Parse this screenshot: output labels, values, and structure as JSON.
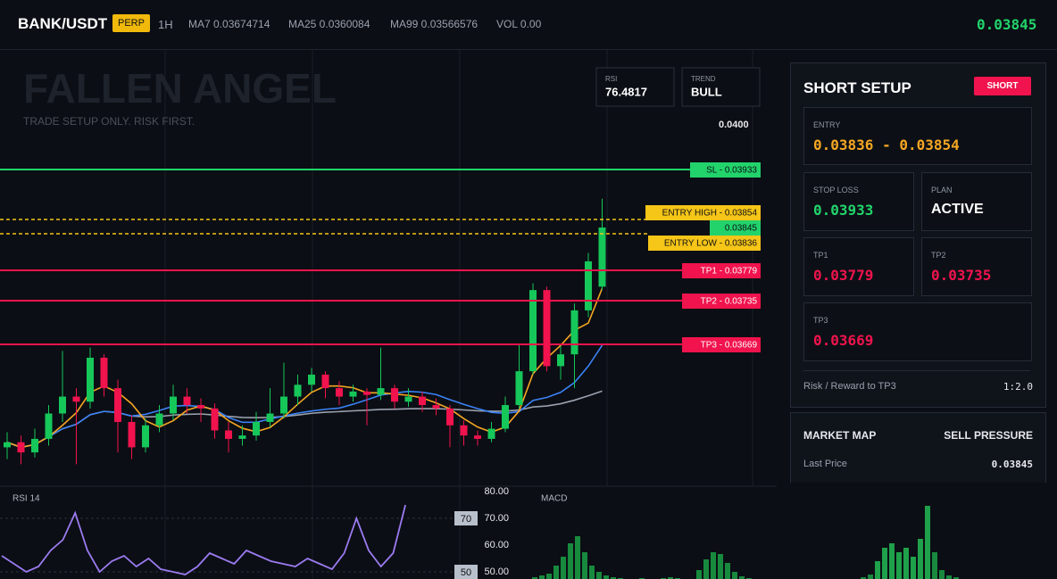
{
  "header": {
    "symbol": "BANK/USDT",
    "badge": "PERP",
    "interval": "1H",
    "ma7": "MA7 0.03674714",
    "ma25": "MA25 0.0360084",
    "ma99": "MA99 0.03566576",
    "vol": "VOL 0.00",
    "last": "0.03845"
  },
  "chart": {
    "title": "FALLEN ANGEL",
    "tagline": "TRADE SETUP ONLY. RISK FIRST.",
    "rsi_box": {
      "label": "RSI",
      "value": "76.4817"
    },
    "trend_box": {
      "label": "TREND",
      "value": "BULL"
    },
    "price_tick": "0.0400",
    "levels": [
      {
        "label": "SL - 0.03933"
      },
      {
        "label": "ENTRY HIGH - 0.03854"
      },
      {
        "label": "0.03845"
      },
      {
        "label": "ENTRY LOW - 0.03836"
      },
      {
        "label": "TP1 - 0.03779"
      },
      {
        "label": "TP2 - 0.03735"
      },
      {
        "label": "TP3 - 0.03669"
      }
    ],
    "ylim": [
      0.03692,
      0.0395
    ],
    "candles": [
      [
        0.03715,
        0.03724,
        0.03708,
        0.03718
      ],
      [
        0.03718,
        0.03722,
        0.03705,
        0.03712
      ],
      [
        0.03712,
        0.03726,
        0.03709,
        0.0372
      ],
      [
        0.0372,
        0.0374,
        0.03716,
        0.03735
      ],
      [
        0.03735,
        0.03772,
        0.0373,
        0.03745
      ],
      [
        0.03745,
        0.0375,
        0.03705,
        0.03742
      ],
      [
        0.03742,
        0.03774,
        0.03738,
        0.03768
      ],
      [
        0.03768,
        0.0377,
        0.03745,
        0.0375
      ],
      [
        0.0375,
        0.03755,
        0.03712,
        0.0373
      ],
      [
        0.0373,
        0.03734,
        0.03708,
        0.03715
      ],
      [
        0.03715,
        0.03732,
        0.03712,
        0.03728
      ],
      [
        0.03728,
        0.0374,
        0.03724,
        0.03735
      ],
      [
        0.03735,
        0.03752,
        0.03731,
        0.03745
      ],
      [
        0.03745,
        0.0375,
        0.03735,
        0.0374
      ],
      [
        0.0374,
        0.03744,
        0.0373,
        0.03738
      ],
      [
        0.03738,
        0.03741,
        0.0372,
        0.03725
      ],
      [
        0.03725,
        0.0373,
        0.03712,
        0.0372
      ],
      [
        0.0372,
        0.03728,
        0.03716,
        0.03722
      ],
      [
        0.03722,
        0.03736,
        0.03719,
        0.0373
      ],
      [
        0.0373,
        0.0375,
        0.03727,
        0.03735
      ],
      [
        0.03735,
        0.03765,
        0.03732,
        0.03745
      ],
      [
        0.03745,
        0.03758,
        0.0374,
        0.03752
      ],
      [
        0.03752,
        0.03762,
        0.03748,
        0.03758
      ],
      [
        0.03758,
        0.0376,
        0.03744,
        0.0375
      ],
      [
        0.0375,
        0.03754,
        0.0374,
        0.03745
      ],
      [
        0.03745,
        0.03752,
        0.03742,
        0.03748
      ],
      [
        0.03748,
        0.0375,
        0.03728,
        0.03746
      ],
      [
        0.03746,
        0.03774,
        0.03743,
        0.0375
      ],
      [
        0.0375,
        0.03752,
        0.03738,
        0.03742
      ],
      [
        0.03742,
        0.0375,
        0.03739,
        0.03745
      ],
      [
        0.03745,
        0.03748,
        0.03736,
        0.0374
      ],
      [
        0.0374,
        0.03744,
        0.03734,
        0.03738
      ],
      [
        0.03738,
        0.0374,
        0.03715,
        0.03728
      ],
      [
        0.03728,
        0.03731,
        0.03716,
        0.03722
      ],
      [
        0.03722,
        0.03725,
        0.03716,
        0.0372
      ],
      [
        0.0372,
        0.0373,
        0.03718,
        0.03726
      ],
      [
        0.03726,
        0.03745,
        0.03724,
        0.0374
      ],
      [
        0.0374,
        0.03776,
        0.03738,
        0.0376
      ],
      [
        0.0376,
        0.03812,
        0.03758,
        0.03808
      ],
      [
        0.03808,
        0.0381,
        0.0376,
        0.03763
      ],
      [
        0.03763,
        0.03775,
        0.03755,
        0.0377
      ],
      [
        0.0377,
        0.038,
        0.0375,
        0.03796
      ],
      [
        0.03796,
        0.0383,
        0.03792,
        0.03825
      ],
      [
        0.0381,
        0.03862,
        0.03808,
        0.03845
      ]
    ]
  },
  "rsi_panel": {
    "title": "RSI 14",
    "ylim": [
      47,
      82
    ],
    "yticks": [
      {
        "value": 80,
        "label": "80.00"
      },
      {
        "value": 70,
        "label": "70.00"
      },
      {
        "value": 60,
        "label": "60.00"
      },
      {
        "value": 50,
        "label": "50.00"
      }
    ],
    "markers": [
      70,
      50
    ],
    "values": [
      56,
      53,
      50,
      52,
      58,
      62,
      72,
      58,
      50,
      54,
      56,
      52,
      55,
      51,
      50,
      49,
      52,
      57,
      55,
      53,
      58,
      56,
      54,
      53,
      52,
      55,
      53,
      51,
      57,
      70,
      58,
      52,
      57,
      75
    ]
  },
  "macd_panel": {
    "title": "MACD",
    "ylim": [
      0,
      100
    ],
    "values": [
      2,
      4,
      6,
      15,
      25,
      40,
      48,
      30,
      15,
      8,
      4,
      2,
      1,
      0,
      0,
      1,
      0,
      0,
      1,
      2,
      1,
      0,
      0,
      10,
      22,
      30,
      28,
      18,
      8,
      3,
      1,
      0,
      0,
      0,
      0,
      0,
      0,
      0,
      0,
      0,
      0,
      0,
      0,
      0,
      0,
      0,
      2,
      5,
      20,
      35,
      40,
      30,
      35,
      25,
      45,
      82,
      30,
      10,
      4,
      2
    ]
  },
  "setup": {
    "title": "SHORT SETUP",
    "badge": "SHORT",
    "entry": {
      "label": "ENTRY",
      "value": "0.03836 - 0.03854"
    },
    "stop_loss": {
      "label": "STOP LOSS",
      "value": "0.03933"
    },
    "plan": {
      "label": "PLAN",
      "value": "ACTIVE"
    },
    "tp1": {
      "label": "TP1",
      "value": "0.03779"
    },
    "tp2": {
      "label": "TP2",
      "value": "0.03735"
    },
    "tp3": {
      "label": "TP3",
      "value": "0.03669"
    },
    "rr": {
      "label": "Risk / Reward to TP3",
      "value": "1:2.0"
    }
  },
  "market_map": {
    "title": "MARKET MAP",
    "status": "SELL PRESSURE",
    "last_label": "Last Price",
    "last_value": "0.03845"
  }
}
